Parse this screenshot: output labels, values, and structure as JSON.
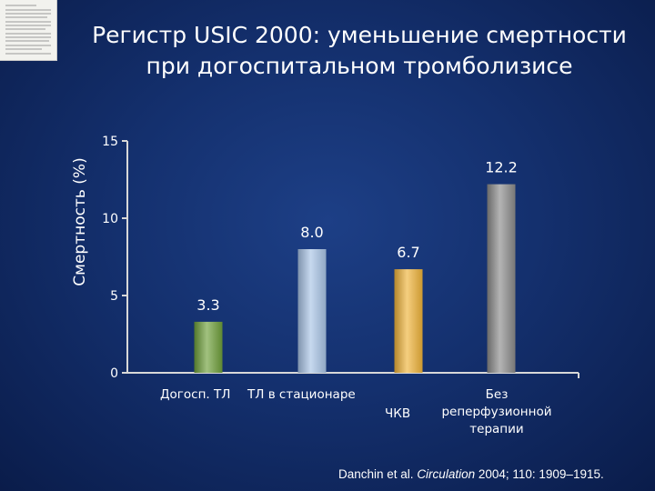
{
  "title_line1": "Регистр USIC 2000: уменьшение смертности",
  "title_line2": "при догоспитальном тромболизисе",
  "citation": {
    "authors": "Danchin et al. ",
    "journal": "Circulation",
    "details": " 2004; 110: 1909–1915."
  },
  "chart_data": {
    "type": "bar",
    "ylabel": "Смертность (%)",
    "ylim": [
      0,
      15
    ],
    "yticks": [
      0,
      5,
      10,
      15
    ],
    "categories": [
      "Догосп. ТЛ",
      "ТЛ в стационаре",
      "ЧКВ",
      "Без реперфузионной терапии"
    ],
    "category_label_lines": [
      [
        "Догосп. ТЛ"
      ],
      [
        "ТЛ в стационаре"
      ],
      [
        "ЧКВ"
      ],
      [
        "Без",
        "реперфузионной",
        "терапии"
      ]
    ],
    "values": [
      3.3,
      8.0,
      6.7,
      12.2
    ],
    "value_labels": [
      "3.3",
      "8.0",
      "6.7",
      "12.2"
    ],
    "bar_colors": [
      "#6ea03a",
      "#a9c4e6",
      "#f0b43a",
      "#8c8c8c"
    ],
    "grid": false,
    "legend": "none"
  }
}
